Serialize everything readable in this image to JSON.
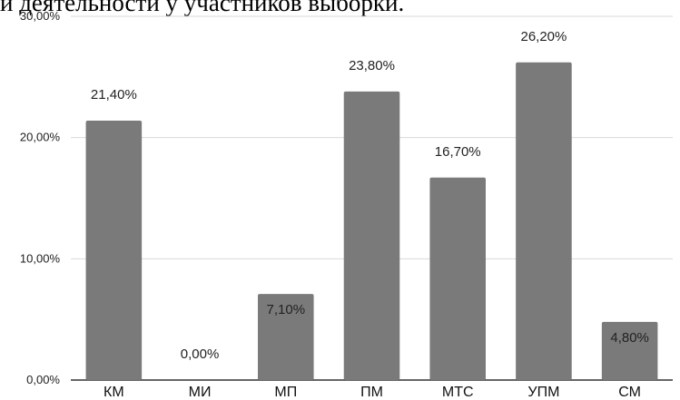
{
  "title": "и деятельности у участников выборки.",
  "colors": {
    "bar": "#7a7a7a",
    "grid": "#d9d9d9",
    "axis": "#333333"
  },
  "chart_data": {
    "type": "bar",
    "title": "",
    "xlabel": "",
    "ylabel": "",
    "ylim": [
      0,
      30
    ],
    "yticks": [
      0,
      10,
      20,
      30
    ],
    "ytick_labels": [
      "0,00%",
      "10,00%",
      "20,00%",
      "30,00%"
    ],
    "grid": true,
    "categories": [
      "КМ",
      "МИ",
      "МП",
      "ПМ",
      "МТС",
      "УПМ",
      "СМ"
    ],
    "values": [
      21.4,
      0,
      7.1,
      23.8,
      16.7,
      26.2,
      4.8
    ],
    "data_labels": [
      "21,40%",
      "0,00%",
      "7,10%",
      "23,80%",
      "16,70%",
      "26,20%",
      "4,80%"
    ]
  }
}
